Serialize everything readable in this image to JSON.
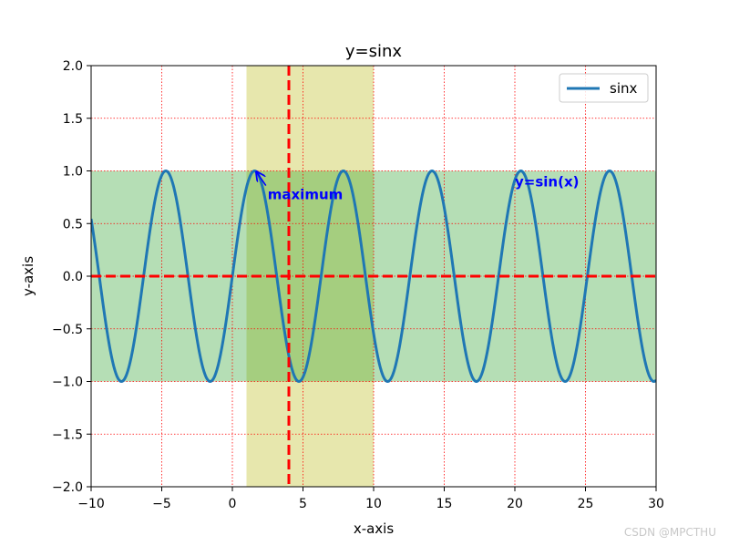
{
  "chart_data": {
    "type": "line",
    "title": "y=sinx",
    "xlabel": "x-axis",
    "ylabel": "y-axis",
    "xlim": [
      -10,
      30
    ],
    "ylim": [
      -2,
      2
    ],
    "xticks": [
      -10,
      -5,
      0,
      5,
      10,
      15,
      20,
      25,
      30
    ],
    "xtick_labels": [
      "−10",
      "−5",
      "0",
      "5",
      "10",
      "15",
      "20",
      "25",
      "30"
    ],
    "yticks": [
      -2.0,
      -1.5,
      -1.0,
      -0.5,
      0.0,
      0.5,
      1.0,
      1.5,
      2.0
    ],
    "ytick_labels": [
      "−2.0",
      "−1.5",
      "−1.0",
      "−0.5",
      "0.0",
      "0.5",
      "1.0",
      "1.5",
      "2.0"
    ],
    "grid": true,
    "grid_color": "#ff0000",
    "series": [
      {
        "name": "sinx",
        "function": "sin(x)",
        "x_range": [
          -10,
          30
        ],
        "color": "#1f77b4"
      }
    ],
    "legend": {
      "placement": "upper right",
      "entries": [
        "sinx"
      ]
    },
    "reference_lines": [
      {
        "orientation": "vertical",
        "x": 4,
        "color": "#ff0000",
        "style": "dashed"
      },
      {
        "orientation": "horizontal",
        "y": 0,
        "color": "#ff0000",
        "style": "dashed"
      }
    ],
    "spans": [
      {
        "orientation": "vertical",
        "x_range": [
          1,
          10
        ],
        "color": "#d4d46a",
        "alpha": 0.55
      },
      {
        "orientation": "horizontal",
        "y_range": [
          -1,
          1
        ],
        "color": "#2ca02c",
        "alpha": 0.35
      }
    ],
    "annotations": [
      {
        "text": "maximum",
        "point": [
          1.5708,
          1.0
        ],
        "text_pos": [
          2.5,
          0.8
        ],
        "color": "#0000ff",
        "arrow": true
      },
      {
        "text": "y=sin(x)",
        "text_pos": [
          20,
          0.92
        ],
        "color": "#0000ff",
        "arrow": false
      }
    ]
  },
  "watermark": "CSDN @MPCTHU"
}
